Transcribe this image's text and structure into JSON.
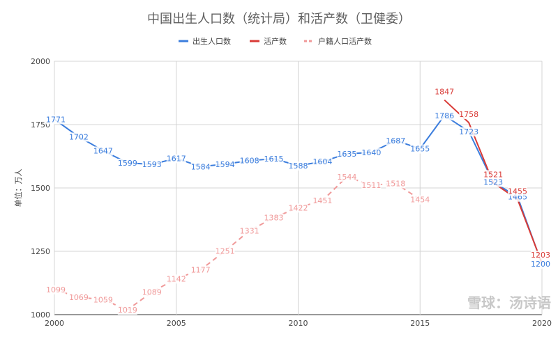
{
  "chart_data": {
    "type": "line",
    "title": "中国出生人口数（统计局）和活产数（卫健委）",
    "ylabel": "单位：万人",
    "xlabel": "",
    "xlim": [
      2000,
      2020
    ],
    "ylim": [
      1000,
      2000
    ],
    "x_ticks": [
      "2000",
      "2005",
      "2010",
      "2015",
      "2020"
    ],
    "y_ticks": [
      "1000",
      "1250",
      "1500",
      "1750",
      "2000"
    ],
    "grid": true,
    "legend_position": "top",
    "series": [
      {
        "name": "出生人口数",
        "color": "#3b7ddd",
        "style": "solid",
        "x": [
          2000,
          2001,
          2002,
          2003,
          2004,
          2005,
          2006,
          2007,
          2008,
          2009,
          2010,
          2011,
          2012,
          2013,
          2014,
          2015,
          2016,
          2017,
          2018,
          2019,
          2020
        ],
        "values": [
          1771,
          1702,
          1647,
          1599,
          1593,
          1617,
          1584,
          1594,
          1608,
          1615,
          1588,
          1604,
          1635,
          1640,
          1687,
          1655,
          1786,
          1723,
          1523,
          1465,
          1200
        ]
      },
      {
        "name": "活产数",
        "color": "#d93a36",
        "style": "solid",
        "x": [
          2016,
          2017,
          2018,
          2019,
          2020
        ],
        "values": [
          1847,
          1758,
          1521,
          1455,
          1203
        ]
      },
      {
        "name": "户籍人口活产数",
        "color": "#f09a9a",
        "style": "dashed",
        "x": [
          2000,
          2001,
          2002,
          2003,
          2004,
          2005,
          2006,
          2007,
          2008,
          2009,
          2010,
          2011,
          2012,
          2013,
          2014,
          2015
        ],
        "values": [
          1099,
          1069,
          1059,
          1019,
          1089,
          1142,
          1177,
          1251,
          1331,
          1383,
          1422,
          1451,
          1544,
          1511,
          1518,
          1454
        ]
      }
    ]
  },
  "watermark": "雪球：汤诗语"
}
